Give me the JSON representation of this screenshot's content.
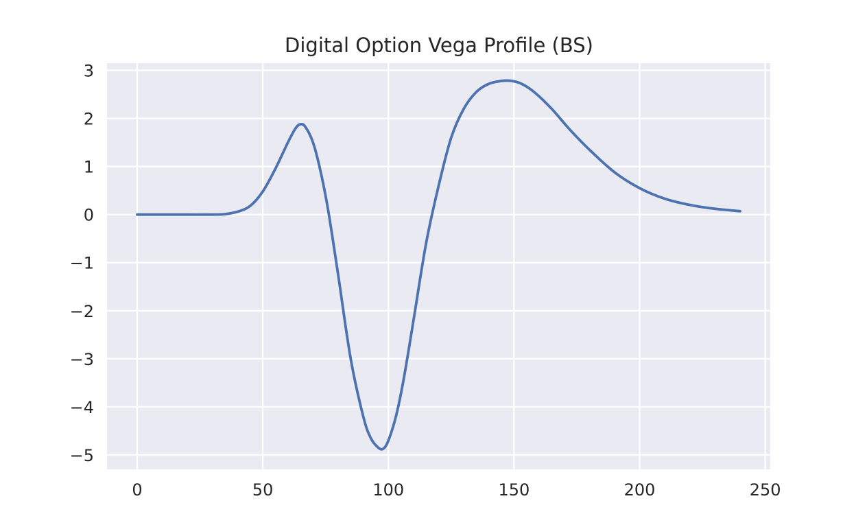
{
  "chart_data": {
    "type": "line",
    "title": "Digital Option Vega Profile (BS)",
    "xlabel": "",
    "ylabel": "",
    "xlim": [
      -12,
      252
    ],
    "ylim": [
      -5.3,
      3.15
    ],
    "x_ticks": [
      0,
      50,
      100,
      150,
      200,
      250
    ],
    "y_ticks": [
      3,
      2,
      1,
      0,
      -1,
      -2,
      -3,
      -4,
      -5
    ],
    "x_tick_labels": [
      "0",
      "50",
      "100",
      "150",
      "200",
      "250"
    ],
    "y_tick_labels": [
      "3",
      "2",
      "1",
      "0",
      "−1",
      "−2",
      "−3",
      "−4",
      "−5"
    ],
    "grid": true,
    "legend": "none",
    "colors": {
      "line": "#4c72b0",
      "plot_bg": "#eaeaf2",
      "grid": "#ffffff"
    },
    "series": [
      {
        "x": [
          0,
          10,
          20,
          30,
          35,
          40,
          45,
          50,
          55,
          60,
          63,
          65,
          67,
          70,
          73,
          76,
          80,
          85,
          90,
          93,
          96,
          98,
          100,
          103,
          106,
          110,
          115,
          120,
          125,
          130,
          135,
          140,
          145,
          149,
          153,
          158,
          165,
          172,
          180,
          190,
          200,
          210,
          220,
          230,
          240
        ],
        "y": [
          0,
          0,
          0,
          0,
          0.01,
          0.06,
          0.18,
          0.48,
          0.95,
          1.5,
          1.79,
          1.88,
          1.82,
          1.5,
          0.9,
          0.1,
          -1.25,
          -3.0,
          -4.2,
          -4.65,
          -4.85,
          -4.87,
          -4.7,
          -4.2,
          -3.45,
          -2.2,
          -0.6,
          0.6,
          1.6,
          2.2,
          2.55,
          2.72,
          2.78,
          2.78,
          2.72,
          2.55,
          2.2,
          1.78,
          1.35,
          0.88,
          0.55,
          0.33,
          0.2,
          0.12,
          0.07
        ]
      }
    ]
  }
}
